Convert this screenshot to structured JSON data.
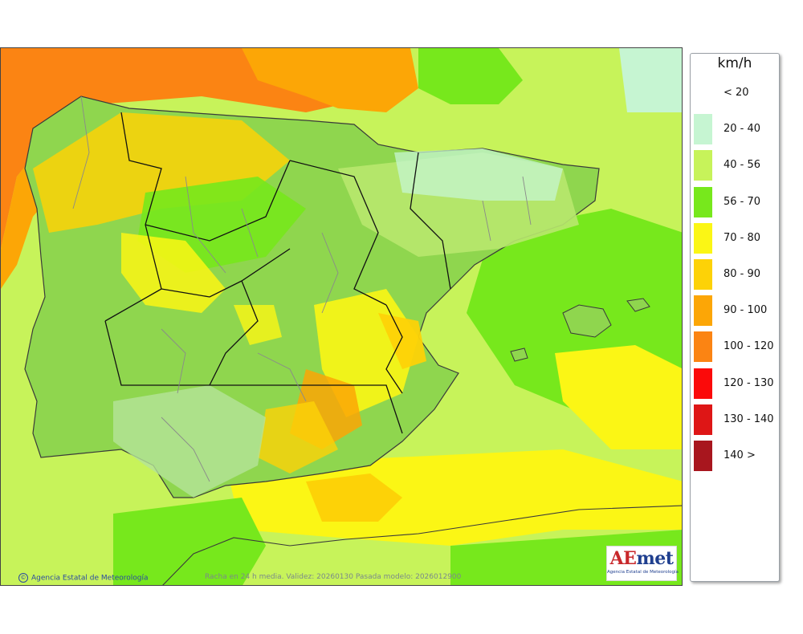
{
  "legend": {
    "unit": "km/h",
    "classes": [
      {
        "label": "< 20",
        "color": "#ffffff"
      },
      {
        "label": "20 - 40",
        "color": "#c6f5d2"
      },
      {
        "label": "40 - 56",
        "color": "#c7f35a"
      },
      {
        "label": "56 - 70",
        "color": "#77e81c"
      },
      {
        "label": "70 - 80",
        "color": "#fbf615"
      },
      {
        "label": "80 - 90",
        "color": "#fdd207"
      },
      {
        "label": "90 - 100",
        "color": "#fca606"
      },
      {
        "label": "100 - 120",
        "color": "#fb8413"
      },
      {
        "label": "120 - 130",
        "color": "#fb0a0a"
      },
      {
        "label": "130 - 140",
        "color": "#de1616"
      },
      {
        "label": "140 >",
        "color": "#a8161e"
      }
    ]
  },
  "credit": {
    "text": "Agencia Estatal de Meteorología",
    "symbol": "©"
  },
  "footer": {
    "info": "Racha en 24 h media. Validez: 20260130 Pasada modelo: 2026012900"
  },
  "logo": {
    "ae": "AE",
    "met": "met",
    "subtitle": "Agencia Estatal de Meteorología",
    "primary_color": "#1f3f8f",
    "accent_color": "#c8282b"
  },
  "colors": {
    "land_shade": "#8fd64e",
    "coast": "#3a3a3a",
    "region_border": "#111111",
    "province_border": "#8a8a8a"
  }
}
